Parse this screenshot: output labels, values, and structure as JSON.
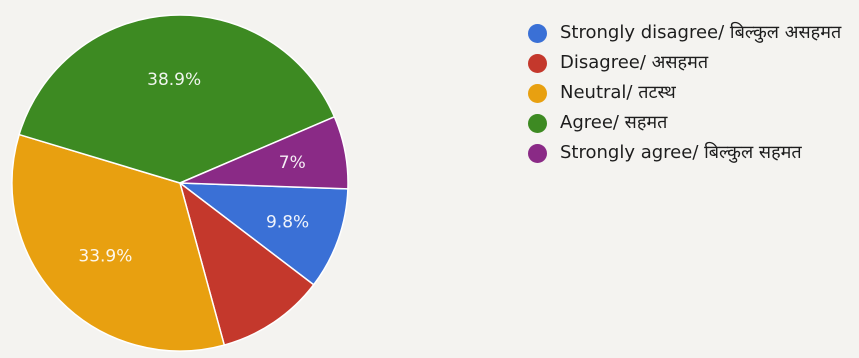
{
  "chart_data": {
    "type": "pie",
    "categories": [
      "Strongly disagree/ बिल्कुल असहमत",
      "Disagree/ असहमत",
      "Neutral/ तटस्थ",
      "Agree/ सहमत",
      "Strongly agree/ बिल्कुल सहमत"
    ],
    "values": [
      9.8,
      10.4,
      33.9,
      38.9,
      7.0
    ],
    "data_labels": [
      "9.8%",
      "",
      "33.9%",
      "38.9%",
      "7%"
    ],
    "colors": [
      "#3a70d6",
      "#c4382c",
      "#e8a010",
      "#3d8a22",
      "#8a2a86"
    ],
    "legend_position": "right"
  }
}
